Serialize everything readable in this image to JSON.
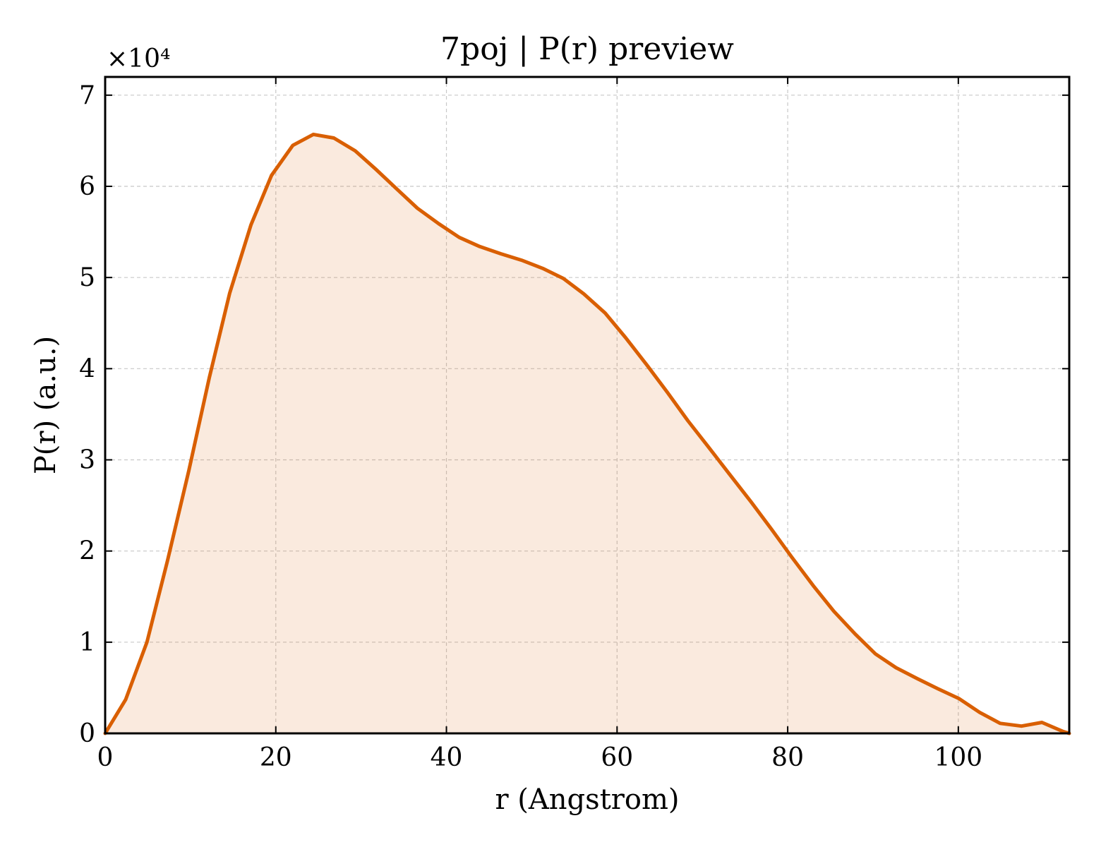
{
  "chart_data": {
    "type": "area",
    "title": "7poj | P(r) preview",
    "xlabel": "r (Angstrom)",
    "ylabel": "P(r) (a.u.)",
    "y_offset_label": "×10⁴",
    "y_scale": 10000,
    "xlim": [
      0,
      113
    ],
    "ylim": [
      0,
      72000
    ],
    "xticks": [
      0,
      20,
      40,
      60,
      80,
      100
    ],
    "xtick_labels": [
      "0",
      "20",
      "40",
      "60",
      "80",
      "100"
    ],
    "yticks": [
      0,
      10000,
      20000,
      30000,
      40000,
      50000,
      60000,
      70000
    ],
    "ytick_labels": [
      "0",
      "1",
      "2",
      "3",
      "4",
      "5",
      "6",
      "7"
    ],
    "grid": true,
    "legend": "none",
    "series": [
      {
        "color": "#d95f02",
        "fill_color": "#d95f02",
        "fill_opacity": 0.13,
        "points": [
          [
            0,
            0
          ],
          [
            2.4,
            3700
          ],
          [
            4.9,
            10000
          ],
          [
            7.3,
            18900
          ],
          [
            9.8,
            28800
          ],
          [
            12.2,
            39000
          ],
          [
            14.6,
            48300
          ],
          [
            17.1,
            55800
          ],
          [
            19.5,
            61200
          ],
          [
            22.0,
            64500
          ],
          [
            24.4,
            65700
          ],
          [
            26.8,
            65300
          ],
          [
            29.3,
            63900
          ],
          [
            31.7,
            61900
          ],
          [
            34.2,
            59700
          ],
          [
            36.6,
            57600
          ],
          [
            39.1,
            55900
          ],
          [
            41.5,
            54400
          ],
          [
            43.9,
            53400
          ],
          [
            46.4,
            52600
          ],
          [
            48.8,
            51900
          ],
          [
            51.3,
            51000
          ],
          [
            53.7,
            49900
          ],
          [
            56.1,
            48200
          ],
          [
            58.6,
            46100
          ],
          [
            61.0,
            43400
          ],
          [
            63.5,
            40400
          ],
          [
            65.9,
            37400
          ],
          [
            68.3,
            34300
          ],
          [
            70.8,
            31300
          ],
          [
            73.2,
            28400
          ],
          [
            75.7,
            25400
          ],
          [
            78.1,
            22400
          ],
          [
            80.5,
            19300
          ],
          [
            83.0,
            16200
          ],
          [
            85.4,
            13400
          ],
          [
            87.9,
            10900
          ],
          [
            90.3,
            8700
          ],
          [
            92.7,
            7200
          ],
          [
            95.2,
            6000
          ],
          [
            97.6,
            4900
          ],
          [
            100.1,
            3800
          ],
          [
            102.5,
            2300
          ],
          [
            104.9,
            1100
          ],
          [
            107.4,
            800
          ],
          [
            109.8,
            1200
          ],
          [
            112.3,
            200
          ],
          [
            113,
            0
          ]
        ]
      }
    ]
  }
}
